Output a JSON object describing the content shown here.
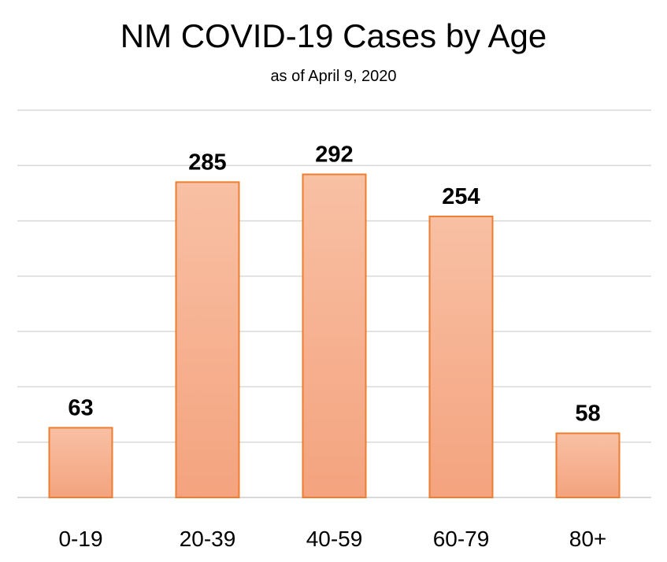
{
  "chart_data": {
    "type": "bar",
    "title": "NM COVID-19 Cases by Age",
    "subtitle": "as of April 9, 2020",
    "categories": [
      "0-19",
      "20-39",
      "40-59",
      "60-79",
      "80+"
    ],
    "values": [
      63,
      285,
      292,
      254,
      58
    ],
    "ylim": [
      0,
      350
    ],
    "y_gridline_step": 50,
    "grid": true,
    "data_labels": true,
    "colors": {
      "bar_fill_top": "#f8c0a4",
      "bar_fill_bottom": "#f4a37e",
      "bar_border": "#ed7d31",
      "gridline": "#d9d9d9"
    }
  }
}
